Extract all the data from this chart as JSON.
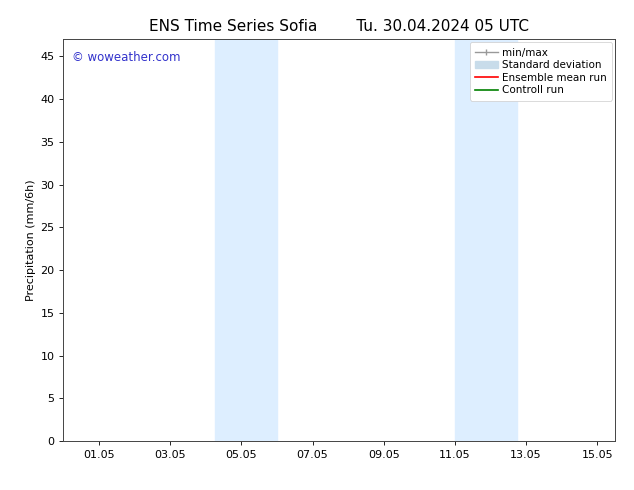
{
  "title_left": "ENS Time Series Sofia",
  "title_right": "Tu. 30.04.2024 05 UTC",
  "ylabel": "Precipitation (mm/6h)",
  "ylim": [
    0,
    47
  ],
  "yticks": [
    0,
    5,
    10,
    15,
    20,
    25,
    30,
    35,
    40,
    45
  ],
  "xlim": [
    0.0,
    15.5
  ],
  "xtick_labels": [
    "01.05",
    "03.05",
    "05.05",
    "07.05",
    "09.05",
    "11.05",
    "13.05",
    "15.05"
  ],
  "xtick_positions": [
    1,
    3,
    5,
    7,
    9,
    11,
    13,
    15
  ],
  "shaded_regions": [
    {
      "xmin": 4.25,
      "xmax": 6.0,
      "color": "#ddeeff"
    },
    {
      "xmin": 11.0,
      "xmax": 12.75,
      "color": "#ddeeff"
    }
  ],
  "legend_items": [
    {
      "label": "min/max",
      "color": "#999999",
      "lw": 1.0
    },
    {
      "label": "Standard deviation",
      "color": "#c8dcea",
      "lw": 7
    },
    {
      "label": "Ensemble mean run",
      "color": "#ff0000",
      "lw": 1.2
    },
    {
      "label": "Controll run",
      "color": "#008000",
      "lw": 1.2
    }
  ],
  "watermark_text": "© woweather.com",
  "watermark_color": "#3333cc",
  "background_color": "#ffffff",
  "title_fontsize": 11,
  "axis_label_fontsize": 8,
  "tick_fontsize": 8,
  "legend_fontsize": 7.5
}
